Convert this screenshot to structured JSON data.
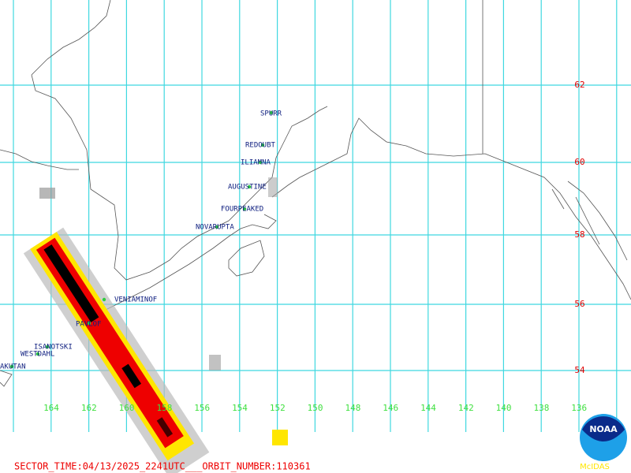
{
  "latitude_labels": [
    "62",
    "60",
    "58",
    "56",
    "54"
  ],
  "longitude_labels": [
    "164",
    "162",
    "160",
    "158",
    "156",
    "154",
    "152",
    "150",
    "148",
    "146",
    "144",
    "142",
    "140",
    "138",
    "136"
  ],
  "volcanoes": [
    "SPURR",
    "REDOUBT",
    "ILIAMNA",
    "AUGUSTINE",
    "FOURPEAKED",
    "NOVARUPTA",
    "VENIAMINOF",
    "PAVLOF",
    "ISANOTSKI",
    "WESTDAHL",
    "AKUTAN"
  ],
  "footer": "SECTOR_TIME:04/13/2025_2241UTC___ORBIT_NUMBER:110361",
  "logo": {
    "name": "NOAA",
    "caption": "McIDAS"
  }
}
